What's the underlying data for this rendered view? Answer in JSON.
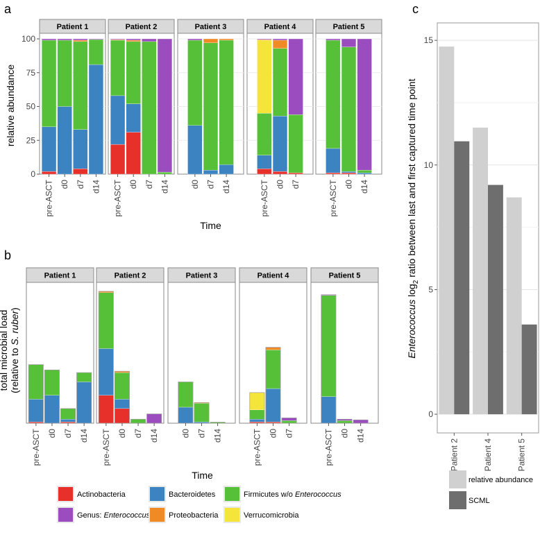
{
  "colors": {
    "Actinobacteria": "#e8302a",
    "Bacteroidetes": "#3c83c2",
    "Firmicutes w/o Enterococcus": "#56c138",
    "Genus: Enterococcus": "#9b4dbf",
    "Proteobacteria": "#f08a24",
    "Verrucomicrobia": "#f5e43a",
    "relative abundance": "#d0d0d0",
    "SCML": "#6e6e6e"
  },
  "legend": {
    "phyla": [
      {
        "name": "Actinobacteria",
        "parts": [
          {
            "t": "Actinobacteria",
            "i": false
          }
        ]
      },
      {
        "name": "Bacteroidetes",
        "parts": [
          {
            "t": "Bacteroidetes",
            "i": false
          }
        ]
      },
      {
        "name": "Firmicutes w/o Enterococcus",
        "parts": [
          {
            "t": "Firmicutes w/o ",
            "i": false
          },
          {
            "t": "Enterococcus",
            "i": true
          }
        ]
      },
      {
        "name": "Genus: Enterococcus",
        "parts": [
          {
            "t": "Genus: ",
            "i": false
          },
          {
            "t": "Enterococcus",
            "i": true
          }
        ]
      },
      {
        "name": "Proteobacteria",
        "parts": [
          {
            "t": "Proteobacteria",
            "i": false
          }
        ]
      },
      {
        "name": "Verrucomicrobia",
        "parts": [
          {
            "t": "Verrucomicrobia",
            "i": false
          }
        ]
      }
    ],
    "c": [
      "relative abundance",
      "SCML"
    ]
  },
  "chart_data": [
    {
      "id": "a",
      "panel_label": "a",
      "type": "bar",
      "stacked": true,
      "ylabel": "relative abundance",
      "xlabel": "Time",
      "ylim": [
        0,
        100
      ],
      "yticks": [
        0,
        25,
        50,
        75,
        100
      ],
      "stack_order": [
        "Actinobacteria",
        "Bacteroidetes",
        "Firmicutes w/o Enterococcus",
        "Verrucomicrobia",
        "Proteobacteria",
        "Genus: Enterococcus"
      ],
      "facets": [
        {
          "name": "Patient 1",
          "bars": [
            {
              "x": "pre-ASCT",
              "Actinobacteria": 2,
              "Bacteroidetes": 33,
              "Firmicutes w/o Enterococcus": 64,
              "Verrucomicrobia": 0,
              "Proteobacteria": 0,
              "Genus: Enterococcus": 1
            },
            {
              "x": "d0",
              "Actinobacteria": 0,
              "Bacteroidetes": 50,
              "Firmicutes w/o Enterococcus": 49,
              "Verrucomicrobia": 0,
              "Proteobacteria": 0,
              "Genus: Enterococcus": 1
            },
            {
              "x": "d7",
              "Actinobacteria": 4,
              "Bacteroidetes": 29,
              "Firmicutes w/o Enterococcus": 65,
              "Verrucomicrobia": 0,
              "Proteobacteria": 1,
              "Genus: Enterococcus": 1
            },
            {
              "x": "d14",
              "Actinobacteria": 0,
              "Bacteroidetes": 81,
              "Firmicutes w/o Enterococcus": 18.5,
              "Verrucomicrobia": 0,
              "Proteobacteria": 0,
              "Genus: Enterococcus": 0.5
            }
          ]
        },
        {
          "name": "Patient 2",
          "bars": [
            {
              "x": "pre-ASCT",
              "Actinobacteria": 22,
              "Bacteroidetes": 36,
              "Firmicutes w/o Enterococcus": 41,
              "Verrucomicrobia": 0,
              "Proteobacteria": 0.5,
              "Genus: Enterococcus": 0.5
            },
            {
              "x": "d0",
              "Actinobacteria": 31,
              "Bacteroidetes": 21,
              "Firmicutes w/o Enterococcus": 46,
              "Verrucomicrobia": 0,
              "Proteobacteria": 1,
              "Genus: Enterococcus": 1
            },
            {
              "x": "d7",
              "Actinobacteria": 0,
              "Bacteroidetes": 0,
              "Firmicutes w/o Enterococcus": 98,
              "Verrucomicrobia": 0,
              "Proteobacteria": 0,
              "Genus: Enterococcus": 2
            },
            {
              "x": "d14",
              "Actinobacteria": 0,
              "Bacteroidetes": 0,
              "Firmicutes w/o Enterococcus": 1.5,
              "Verrucomicrobia": 0,
              "Proteobacteria": 0,
              "Genus: Enterococcus": 98.5
            }
          ]
        },
        {
          "name": "Patient 3",
          "bars": [
            {
              "x": "d0",
              "Actinobacteria": 0,
              "Bacteroidetes": 36,
              "Firmicutes w/o Enterococcus": 63,
              "Verrucomicrobia": 0,
              "Proteobacteria": 0,
              "Genus: Enterococcus": 1
            },
            {
              "x": "d7",
              "Actinobacteria": 0,
              "Bacteroidetes": 3,
              "Firmicutes w/o Enterococcus": 94,
              "Verrucomicrobia": 0,
              "Proteobacteria": 3,
              "Genus: Enterococcus": 0
            },
            {
              "x": "d14",
              "Actinobacteria": 0,
              "Bacteroidetes": 7,
              "Firmicutes w/o Enterococcus": 92,
              "Verrucomicrobia": 0,
              "Proteobacteria": 1,
              "Genus: Enterococcus": 0
            }
          ]
        },
        {
          "name": "Patient 4",
          "bars": [
            {
              "x": "pre-ASCT",
              "Actinobacteria": 4,
              "Bacteroidetes": 10,
              "Firmicutes w/o Enterococcus": 31,
              "Verrucomicrobia": 54,
              "Proteobacteria": 0.5,
              "Genus: Enterococcus": 0.5
            },
            {
              "x": "d0",
              "Actinobacteria": 2,
              "Bacteroidetes": 41,
              "Firmicutes w/o Enterococcus": 50,
              "Verrucomicrobia": 0,
              "Proteobacteria": 6,
              "Genus: Enterococcus": 1
            },
            {
              "x": "d7",
              "Actinobacteria": 1,
              "Bacteroidetes": 0,
              "Firmicutes w/o Enterococcus": 43,
              "Verrucomicrobia": 0,
              "Proteobacteria": 0,
              "Genus: Enterococcus": 56
            }
          ]
        },
        {
          "name": "Patient 5",
          "bars": [
            {
              "x": "pre-ASCT",
              "Actinobacteria": 1,
              "Bacteroidetes": 18,
              "Firmicutes w/o Enterococcus": 80,
              "Verrucomicrobia": 0,
              "Proteobacteria": 0,
              "Genus: Enterococcus": 1
            },
            {
              "x": "d0",
              "Actinobacteria": 1,
              "Bacteroidetes": 1,
              "Firmicutes w/o Enterococcus": 92,
              "Verrucomicrobia": 0,
              "Proteobacteria": 0,
              "Genus: Enterococcus": 6
            },
            {
              "x": "d14",
              "Actinobacteria": 0,
              "Bacteroidetes": 1,
              "Firmicutes w/o Enterococcus": 2,
              "Verrucomicrobia": 0,
              "Proteobacteria": 0,
              "Genus: Enterococcus": 97
            }
          ]
        }
      ]
    },
    {
      "id": "b",
      "panel_label": "b",
      "type": "bar",
      "stacked": true,
      "ylabel_line1": "total microbial load",
      "ylabel_line2_prefix": "(relative to ",
      "ylabel_line2_italic": "S. ruber",
      "ylabel_line2_suffix": ")",
      "xlabel": "Time",
      "ylim": [
        0,
        100
      ],
      "stack_order": [
        "Actinobacteria",
        "Bacteroidetes",
        "Firmicutes w/o Enterococcus",
        "Verrucomicrobia",
        "Proteobacteria",
        "Genus: Enterococcus"
      ],
      "facets": [
        {
          "name": "Patient 1",
          "bars": [
            {
              "x": "pre-ASCT",
              "Actinobacteria": 1,
              "Bacteroidetes": 17,
              "Firmicutes w/o Enterococcus": 26,
              "Verrucomicrobia": 0,
              "Proteobacteria": 0,
              "Genus: Enterococcus": 0
            },
            {
              "x": "d0",
              "Actinobacteria": 0,
              "Bacteroidetes": 21,
              "Firmicutes w/o Enterococcus": 19,
              "Verrucomicrobia": 0,
              "Proteobacteria": 0,
              "Genus: Enterococcus": 0
            },
            {
              "x": "d7",
              "Actinobacteria": 1,
              "Bacteroidetes": 2,
              "Firmicutes w/o Enterococcus": 8,
              "Verrucomicrobia": 0,
              "Proteobacteria": 0,
              "Genus: Enterococcus": 0
            },
            {
              "x": "d14",
              "Actinobacteria": 0,
              "Bacteroidetes": 31,
              "Firmicutes w/o Enterococcus": 7,
              "Verrucomicrobia": 0,
              "Proteobacteria": 0,
              "Genus: Enterococcus": 0
            }
          ]
        },
        {
          "name": "Patient 2",
          "bars": [
            {
              "x": "pre-ASCT",
              "Actinobacteria": 21,
              "Bacteroidetes": 35,
              "Firmicutes w/o Enterococcus": 42,
              "Verrucomicrobia": 0,
              "Proteobacteria": 1,
              "Genus: Enterococcus": 0
            },
            {
              "x": "d0",
              "Actinobacteria": 11,
              "Bacteroidetes": 7,
              "Firmicutes w/o Enterococcus": 20,
              "Verrucomicrobia": 0,
              "Proteobacteria": 1,
              "Genus: Enterococcus": 0
            },
            {
              "x": "d7",
              "Actinobacteria": 0,
              "Bacteroidetes": 0,
              "Firmicutes w/o Enterococcus": 3,
              "Verrucomicrobia": 0,
              "Proteobacteria": 0,
              "Genus: Enterococcus": 0
            },
            {
              "x": "d14",
              "Actinobacteria": 0,
              "Bacteroidetes": 0,
              "Firmicutes w/o Enterococcus": 0,
              "Verrucomicrobia": 0,
              "Proteobacteria": 0,
              "Genus: Enterococcus": 7
            }
          ]
        },
        {
          "name": "Patient 3",
          "bars": [
            {
              "x": "d0",
              "Actinobacteria": 0,
              "Bacteroidetes": 12,
              "Firmicutes w/o Enterococcus": 19,
              "Verrucomicrobia": 0,
              "Proteobacteria": 0,
              "Genus: Enterococcus": 0
            },
            {
              "x": "d7",
              "Actinobacteria": 0,
              "Bacteroidetes": 1,
              "Firmicutes w/o Enterococcus": 14,
              "Verrucomicrobia": 0,
              "Proteobacteria": 0.5,
              "Genus: Enterococcus": 0
            },
            {
              "x": "d14",
              "Actinobacteria": 0,
              "Bacteroidetes": 0,
              "Firmicutes w/o Enterococcus": 0.8,
              "Verrucomicrobia": 0,
              "Proteobacteria": 0,
              "Genus: Enterococcus": 0
            }
          ]
        },
        {
          "name": "Patient 4",
          "bars": [
            {
              "x": "pre-ASCT",
              "Actinobacteria": 1,
              "Bacteroidetes": 2,
              "Firmicutes w/o Enterococcus": 7,
              "Verrucomicrobia": 13,
              "Proteobacteria": 0,
              "Genus: Enterococcus": 0
            },
            {
              "x": "d0",
              "Actinobacteria": 1,
              "Bacteroidetes": 25,
              "Firmicutes w/o Enterococcus": 29,
              "Verrucomicrobia": 0,
              "Proteobacteria": 2,
              "Genus: Enterococcus": 0
            },
            {
              "x": "d7",
              "Actinobacteria": 0,
              "Bacteroidetes": 0,
              "Firmicutes w/o Enterococcus": 2,
              "Verrucomicrobia": 0,
              "Proteobacteria": 0,
              "Genus: Enterococcus": 2
            }
          ]
        },
        {
          "name": "Patient 5",
          "bars": [
            {
              "x": "pre-ASCT",
              "Actinobacteria": 0,
              "Bacteroidetes": 20,
              "Firmicutes w/o Enterococcus": 76,
              "Verrucomicrobia": 0,
              "Proteobacteria": 0,
              "Genus: Enterococcus": 0.5
            },
            {
              "x": "d0",
              "Actinobacteria": 0,
              "Bacteroidetes": 0,
              "Firmicutes w/o Enterococcus": 2,
              "Verrucomicrobia": 0,
              "Proteobacteria": 0,
              "Genus: Enterococcus": 1
            },
            {
              "x": "d14",
              "Actinobacteria": 0,
              "Bacteroidetes": 0,
              "Firmicutes w/o Enterococcus": 0,
              "Verrucomicrobia": 0,
              "Proteobacteria": 0,
              "Genus: Enterococcus": 2.5
            }
          ]
        }
      ]
    },
    {
      "id": "c",
      "panel_label": "c",
      "type": "bar",
      "ylabel_prefix_italic": "Enterococcus",
      "ylabel_mid": " log",
      "ylabel_sub": "2",
      "ylabel_suffix": " ratio between last and first captured time point",
      "categories": [
        "Patient 2",
        "Patient 4",
        "Patient 5"
      ],
      "series": [
        {
          "name": "relative abundance",
          "values": [
            14.75,
            11.5,
            8.7
          ]
        },
        {
          "name": "SCML",
          "values": [
            10.95,
            9.2,
            3.6
          ]
        }
      ],
      "ylim": [
        -0.75,
        15.7
      ],
      "yticks": [
        0,
        5,
        10,
        15
      ]
    }
  ]
}
